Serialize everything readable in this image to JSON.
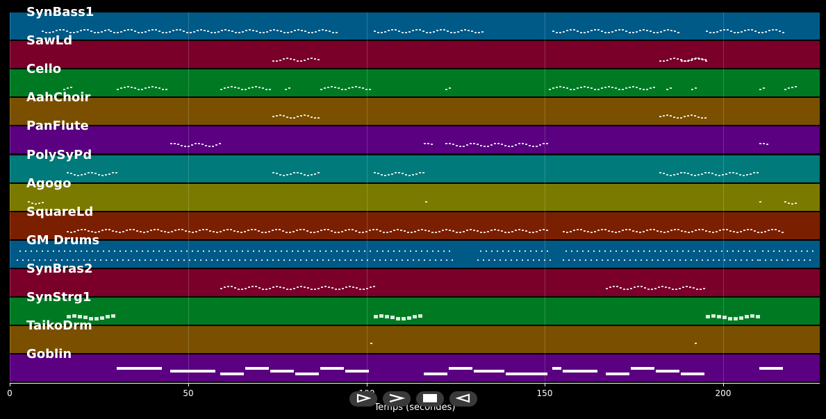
{
  "tracks": [
    {
      "name": "SynBass1",
      "color": "#005a87",
      "notes": [
        [
          9,
          28,
          "d"
        ],
        [
          28,
          92,
          "d"
        ],
        [
          102,
          133,
          "d"
        ],
        [
          152,
          188,
          "d"
        ],
        [
          195,
          217,
          "d"
        ]
      ]
    },
    {
      "name": "SawLd",
      "color": "#7a002a",
      "notes": [
        [
          73.5,
          87,
          "d"
        ],
        [
          182,
          195,
          "d"
        ],
        [
          188,
          195,
          "d"
        ]
      ]
    },
    {
      "name": "Cello",
      "color": "#007a22",
      "notes": [
        [
          15,
          17.5,
          "d"
        ],
        [
          30,
          44,
          "d"
        ],
        [
          59,
          73,
          "d"
        ],
        [
          77,
          78.5,
          "d"
        ],
        [
          87,
          101,
          "d"
        ],
        [
          122,
          123.5,
          "d"
        ],
        [
          151,
          181,
          "d"
        ],
        [
          184,
          185.5,
          "d"
        ],
        [
          191,
          192.5,
          "d"
        ],
        [
          210,
          211.5,
          "d"
        ],
        [
          217,
          220,
          "d"
        ]
      ]
    },
    {
      "name": "AahChoir",
      "color": "#7a5000",
      "notes": [
        [
          73.5,
          87,
          "d"
        ],
        [
          182,
          195,
          "d"
        ]
      ]
    },
    {
      "name": "PanFlute",
      "color": "#5a0080",
      "notes": [
        [
          45,
          59,
          "d"
        ],
        [
          116,
          118,
          "d"
        ],
        [
          122,
          151,
          "d"
        ],
        [
          210,
          212,
          "d"
        ]
      ]
    },
    {
      "name": "PolySyPd",
      "color": "#007a7a",
      "notes": [
        [
          16,
          30,
          "d"
        ],
        [
          73.5,
          87,
          "d"
        ],
        [
          102,
          116,
          "d"
        ],
        [
          182,
          210,
          "d"
        ]
      ]
    },
    {
      "name": "Agogo",
      "color": "#7a7a00",
      "notes": [
        [
          5,
          9,
          "d"
        ],
        [
          116.5,
          117,
          "d"
        ],
        [
          210,
          210.5,
          "d"
        ],
        [
          217,
          220,
          "d"
        ]
      ]
    },
    {
      "name": "SquareLd",
      "color": "#7a2000",
      "notes": [
        [
          16,
          151,
          "d"
        ],
        [
          155,
          217,
          "d"
        ]
      ]
    },
    {
      "name": "GM Drums",
      "color": "#005a87",
      "notes": [
        [
          2,
          101,
          "d"
        ],
        [
          102,
          124,
          "d"
        ],
        [
          131,
          152,
          "d"
        ],
        [
          155,
          210,
          "d"
        ],
        [
          210,
          225,
          "d"
        ]
      ]
    },
    {
      "name": "SynBras2",
      "color": "#7a002a",
      "notes": [
        [
          59,
          102,
          "d"
        ],
        [
          167,
          195,
          "d"
        ]
      ]
    },
    {
      "name": "SynStrg1",
      "color": "#007a22",
      "notes": [
        [
          16,
          30,
          "d"
        ],
        [
          102,
          116,
          "d"
        ],
        [
          195,
          210,
          "d"
        ]
      ]
    },
    {
      "name": "TaikoDrm",
      "color": "#7a5000",
      "notes": [
        [
          101,
          101.5,
          "d"
        ],
        [
          192,
          192.5,
          "d"
        ]
      ]
    },
    {
      "name": "Goblin",
      "color": "#5a0080",
      "notes": [
        [
          30,
          43,
          "b"
        ],
        [
          45,
          58,
          "b"
        ],
        [
          59,
          66,
          "b"
        ],
        [
          66,
          73,
          "b"
        ],
        [
          73,
          80,
          "b"
        ],
        [
          80,
          87,
          "b"
        ],
        [
          87,
          94,
          "b"
        ],
        [
          94,
          101,
          "b"
        ],
        [
          116,
          123,
          "b"
        ],
        [
          123,
          130,
          "b"
        ],
        [
          130,
          139,
          "b"
        ],
        [
          139,
          151,
          "b"
        ],
        [
          152,
          155,
          "b"
        ],
        [
          155,
          165,
          "b"
        ],
        [
          167,
          174,
          "b"
        ],
        [
          174,
          181,
          "b"
        ],
        [
          181,
          188,
          "b"
        ],
        [
          188,
          195,
          "b"
        ],
        [
          210,
          217,
          "b"
        ]
      ]
    }
  ],
  "axis": {
    "xmin": 0,
    "xmax": 227,
    "ticks": [
      0,
      50,
      100,
      150,
      200
    ],
    "tick_labels": [
      "0",
      "50",
      "100",
      "150",
      "200"
    ],
    "label": "Temps (secondes)"
  },
  "controls": [
    {
      "name": "play-button",
      "icon": "play-outline-icon",
      "glyph": "▷"
    },
    {
      "name": "forward-button",
      "icon": "chevron-right-icon",
      "glyph": ">"
    },
    {
      "name": "stop-button",
      "icon": "stop-square-icon",
      "glyph": "■"
    },
    {
      "name": "rewind-button",
      "icon": "triangle-left-outline-icon",
      "glyph": "◁"
    }
  ]
}
